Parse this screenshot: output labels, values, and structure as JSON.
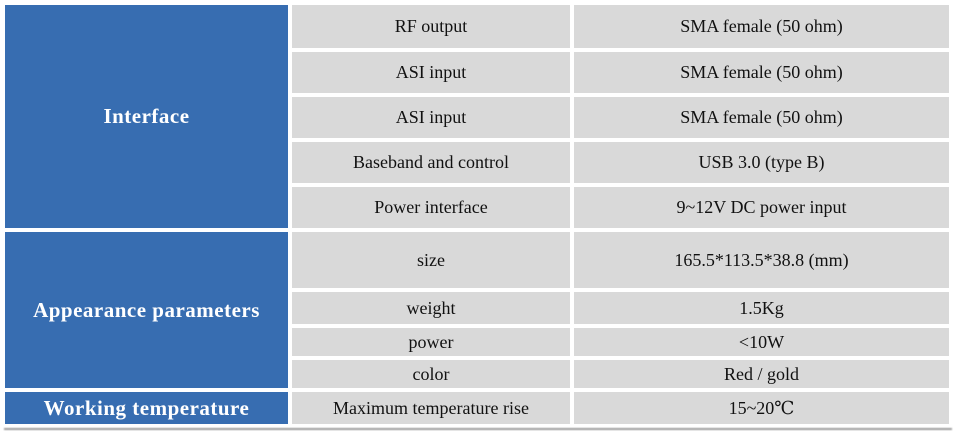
{
  "table": {
    "groups": [
      {
        "label": "Interface",
        "rows": [
          {
            "param": "RF output",
            "value": "SMA female (50 ohm)"
          },
          {
            "param": "ASI input",
            "value": "SMA female (50 ohm)"
          },
          {
            "param": "ASI input",
            "value": "SMA female (50 ohm)"
          },
          {
            "param": "Baseband and control",
            "value": "USB 3.0 (type B)"
          },
          {
            "param": "Power interface",
            "value": "9~12V DC power input"
          }
        ]
      },
      {
        "label": "Appearance parameters",
        "rows": [
          {
            "param": "size",
            "value": "165.5*113.5*38.8 (mm)"
          },
          {
            "param": "weight",
            "value": "1.5Kg"
          },
          {
            "param": "power",
            "value": "<10W"
          },
          {
            "param": "color",
            "value": "Red / gold"
          }
        ]
      },
      {
        "label": "Working temperature",
        "rows": [
          {
            "param": "Maximum temperature rise",
            "value": "15~20℃"
          }
        ]
      }
    ],
    "colors": {
      "group_header_bg": "#376db1",
      "group_header_text": "#ffffff",
      "cell_bg": "#d9d9d9",
      "cell_text": "#111111",
      "gap": "#ffffff",
      "bottom_shadow": "#9a9a9a"
    }
  }
}
